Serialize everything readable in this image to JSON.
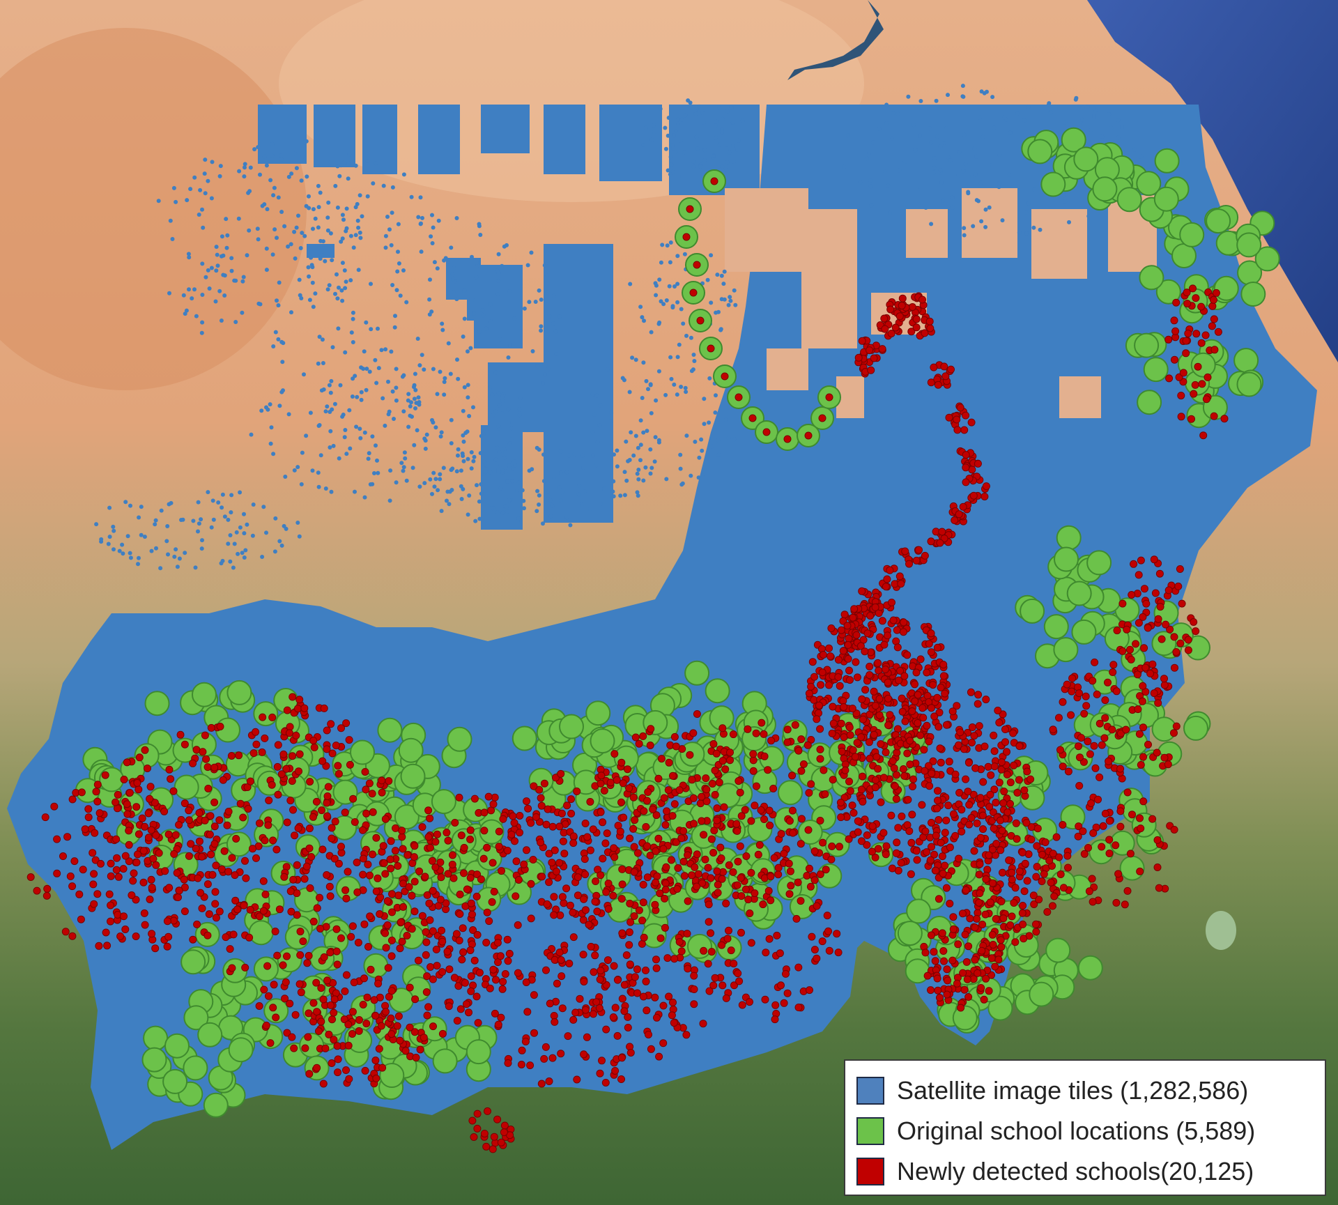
{
  "legend": {
    "items": [
      {
        "label": "Satellite image tiles (1,282,586)",
        "color": "#4f81bd"
      },
      {
        "label": "Original school locations (5,589)",
        "color": "#6cc24a"
      },
      {
        "label": "Newly detected schools(20,125)",
        "color": "#c00000"
      }
    ]
  },
  "colors": {
    "tiles": "#3f7fc2",
    "original_school_fill": "#6cc24a",
    "original_school_stroke": "#3f8a2e",
    "new_school_fill": "#c00000",
    "new_school_stroke": "#7a0000",
    "desert": "#e3a77e",
    "savanna": "#7f8f55",
    "forest": "#3f6b35",
    "sea": "#2f4f9a"
  }
}
